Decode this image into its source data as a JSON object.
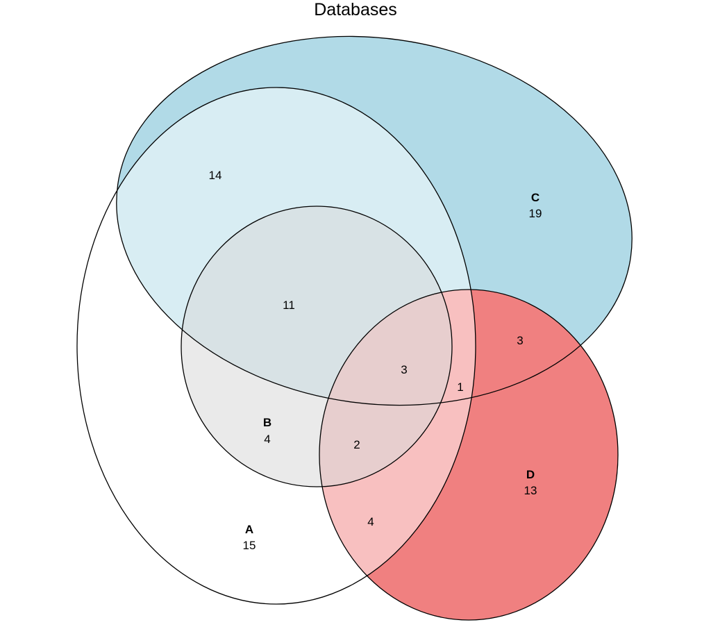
{
  "title": "Databases",
  "sets": {
    "A": {
      "name": "A",
      "count": "15",
      "color": "#ffffff"
    },
    "B": {
      "name": "B",
      "count": "4",
      "color": "#d9d9d9"
    },
    "C": {
      "name": "C",
      "count": "19",
      "color": "#add8e6"
    },
    "D": {
      "name": "D",
      "count": "13",
      "color": "#f08080"
    }
  },
  "regions": {
    "A_C": "14",
    "A_B_C": "11",
    "A_B_C_D": "3",
    "A_C_D": "1",
    "C_D": "3",
    "A_B_D": "2",
    "A_D": "4"
  }
}
